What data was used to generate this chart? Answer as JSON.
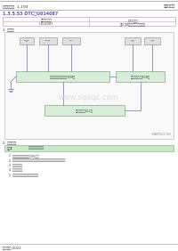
{
  "title_left": "变速箱总成  1-193",
  "title_right": "自动变速器",
  "section_title": "1.3.5.53 DTC：U014087",
  "table_header_left": "故障描述代码",
  "table_header_right": "DTC描述",
  "table_row_left": "U014087",
  "table_row_right": "和ECM丢失通信主节点丢失",
  "section1_title": "1. 电路图",
  "section2_title": "2. 诊断说明",
  "step_label": "步骤1",
  "step_text": "连接诊断测试仪前先.",
  "bullets": [
    "确保蓄电池电压不低于10V之前.",
    "将这些步骤与下列不一致处，连接诊断测试仪并将点火装置运行下面.",
    "关闭点火装置.",
    "断开主连接器.",
    "检查是否出现中断的特殊情况线路."
  ],
  "footer": "广汽传祺 2022",
  "watermark": "www.sqxqc.com",
  "bg_color": "#ffffff",
  "header_line_color": "#aaaaaa",
  "diagram_border": "#bbbbbb",
  "box_fill": "#e0e0e0",
  "box_stroke": "#888888",
  "line_color": "#7070b0",
  "table_border": "#c8a0c8",
  "step_bg": "#c8e8c8",
  "step_border": "#90b890",
  "section_color": "#5050cc",
  "tcm_fill": "#d8eed8",
  "tcm_stroke": "#90b890",
  "ref_text": "MA070S(3) 059"
}
